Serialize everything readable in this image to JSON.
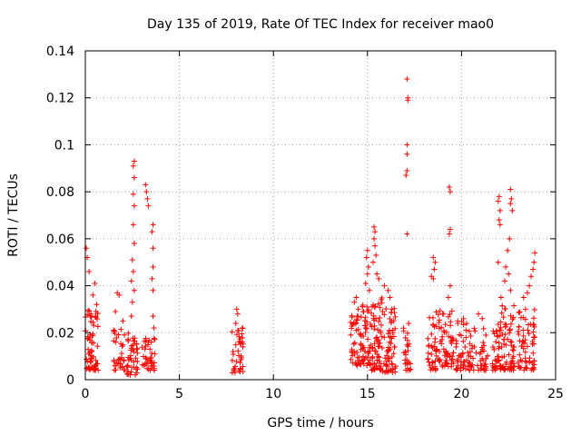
{
  "chart_data": {
    "type": "scatter",
    "title": "Day 135 of 2019, Rate Of TEC Index for receiver mao0",
    "xlabel": "GPS time / hours",
    "ylabel": "ROTI / TECUs",
    "xlim": [
      0,
      25
    ],
    "ylim": [
      0,
      0.14
    ],
    "xticks": [
      "0",
      "5",
      "10",
      "15",
      "20",
      "25"
    ],
    "yticks": [
      "0",
      "0.02",
      "0.04",
      "0.06",
      "0.08",
      "0.1",
      "0.12",
      "0.14"
    ],
    "grid": true,
    "marker": "plus",
    "color": "#ff0000",
    "clusters": [
      {
        "x": [
          0.0,
          0.7
        ],
        "low": 0.004,
        "high": 0.03,
        "n": 70,
        "peaks": [
          [
            0.05,
            0.056
          ],
          [
            0.1,
            0.052
          ],
          [
            0.2,
            0.046
          ],
          [
            0.5,
            0.041
          ],
          [
            0.4,
            0.036
          ],
          [
            0.6,
            0.032
          ],
          [
            0.3,
            0.028
          ]
        ]
      },
      {
        "x": [
          1.5,
          2.1
        ],
        "low": 0.004,
        "high": 0.022,
        "n": 35,
        "peaks": [
          [
            1.7,
            0.037
          ],
          [
            1.8,
            0.036
          ],
          [
            1.6,
            0.029
          ],
          [
            2.0,
            0.025
          ]
        ]
      },
      {
        "x": [
          2.2,
          2.8
        ],
        "low": 0.002,
        "high": 0.02,
        "n": 45,
        "peaks": [
          [
            2.6,
            0.093
          ],
          [
            2.55,
            0.091
          ],
          [
            2.6,
            0.086
          ],
          [
            2.55,
            0.079
          ],
          [
            2.6,
            0.074
          ],
          [
            2.55,
            0.066
          ],
          [
            2.6,
            0.058
          ],
          [
            2.5,
            0.051
          ],
          [
            2.55,
            0.046
          ],
          [
            2.45,
            0.042
          ],
          [
            2.6,
            0.038
          ],
          [
            2.5,
            0.033
          ],
          [
            2.45,
            0.027
          ]
        ]
      },
      {
        "x": [
          3.0,
          3.7
        ],
        "low": 0.004,
        "high": 0.018,
        "n": 40,
        "peaks": [
          [
            3.2,
            0.083
          ],
          [
            3.25,
            0.08
          ],
          [
            3.3,
            0.077
          ],
          [
            3.35,
            0.074
          ],
          [
            3.6,
            0.066
          ],
          [
            3.55,
            0.063
          ],
          [
            3.6,
            0.056
          ],
          [
            3.6,
            0.048
          ],
          [
            3.55,
            0.043
          ],
          [
            3.6,
            0.038
          ],
          [
            3.6,
            0.027
          ],
          [
            3.65,
            0.022
          ]
        ]
      },
      {
        "x": [
          7.8,
          8.4
        ],
        "low": 0.003,
        "high": 0.022,
        "n": 40,
        "peaks": [
          [
            8.05,
            0.03
          ],
          [
            8.1,
            0.028
          ],
          [
            8.0,
            0.024
          ]
        ]
      },
      {
        "x": [
          14.1,
          14.6
        ],
        "low": 0.006,
        "high": 0.03,
        "n": 35,
        "peaks": [
          [
            14.4,
            0.035
          ],
          [
            14.3,
            0.033
          ],
          [
            14.45,
            0.027
          ],
          [
            14.4,
            0.021
          ]
        ]
      },
      {
        "x": [
          14.6,
          15.2
        ],
        "low": 0.006,
        "high": 0.035,
        "n": 50,
        "peaks": [
          [
            15.0,
            0.055
          ],
          [
            14.95,
            0.052
          ],
          [
            15.05,
            0.048
          ],
          [
            15.0,
            0.045
          ],
          [
            14.9,
            0.041
          ],
          [
            15.1,
            0.038
          ],
          [
            14.9,
            0.022
          ]
        ]
      },
      {
        "x": [
          15.2,
          15.8
        ],
        "low": 0.004,
        "high": 0.035,
        "n": 65,
        "peaks": [
          [
            15.35,
            0.065
          ],
          [
            15.4,
            0.063
          ],
          [
            15.35,
            0.06
          ],
          [
            15.4,
            0.057
          ],
          [
            15.45,
            0.053
          ],
          [
            15.3,
            0.05
          ],
          [
            15.5,
            0.045
          ],
          [
            15.6,
            0.043
          ]
        ]
      },
      {
        "x": [
          15.8,
          16.5
        ],
        "low": 0.003,
        "high": 0.032,
        "n": 60,
        "peaks": [
          [
            15.9,
            0.04
          ],
          [
            16.1,
            0.038
          ],
          [
            16.2,
            0.035
          ],
          [
            16.3,
            0.03
          ]
        ]
      },
      {
        "x": [
          16.9,
          17.3
        ],
        "low": 0.004,
        "high": 0.025,
        "n": 25,
        "peaks": [
          [
            17.1,
            0.128
          ],
          [
            17.15,
            0.12
          ],
          [
            17.15,
            0.119
          ],
          [
            17.1,
            0.1
          ],
          [
            17.1,
            0.096
          ],
          [
            17.1,
            0.089
          ],
          [
            17.05,
            0.087
          ],
          [
            17.1,
            0.062
          ]
        ]
      },
      {
        "x": [
          18.2,
          18.8
        ],
        "low": 0.004,
        "high": 0.03,
        "n": 40,
        "peaks": [
          [
            18.5,
            0.052
          ],
          [
            18.6,
            0.05
          ],
          [
            18.55,
            0.047
          ],
          [
            18.4,
            0.044
          ],
          [
            18.5,
            0.043
          ]
        ]
      },
      {
        "x": [
          18.8,
          19.6
        ],
        "low": 0.005,
        "high": 0.03,
        "n": 55,
        "peaks": [
          [
            19.35,
            0.082
          ],
          [
            19.4,
            0.08
          ],
          [
            19.4,
            0.064
          ],
          [
            19.35,
            0.062
          ],
          [
            19.4,
            0.04
          ],
          [
            19.3,
            0.035
          ],
          [
            19.0,
            0.028
          ]
        ]
      },
      {
        "x": [
          19.7,
          20.4
        ],
        "low": 0.004,
        "high": 0.025,
        "n": 40,
        "peaks": [
          [
            20.1,
            0.026
          ],
          [
            19.8,
            0.024
          ]
        ]
      },
      {
        "x": [
          20.4,
          21.4
        ],
        "low": 0.004,
        "high": 0.022,
        "n": 50,
        "peaks": [
          [
            20.9,
            0.028
          ],
          [
            21.1,
            0.026
          ]
        ]
      },
      {
        "x": [
          21.6,
          22.1
        ],
        "low": 0.004,
        "high": 0.025,
        "n": 40,
        "peaks": [
          [
            22.0,
            0.078
          ],
          [
            21.95,
            0.076
          ],
          [
            22.05,
            0.072
          ],
          [
            22.0,
            0.068
          ],
          [
            22.05,
            0.066
          ],
          [
            21.95,
            0.05
          ],
          [
            22.1,
            0.035
          ]
        ]
      },
      {
        "x": [
          22.1,
          22.8
        ],
        "low": 0.004,
        "high": 0.035,
        "n": 65,
        "peaks": [
          [
            22.6,
            0.081
          ],
          [
            22.65,
            0.077
          ],
          [
            22.6,
            0.075
          ],
          [
            22.7,
            0.072
          ],
          [
            22.55,
            0.06
          ],
          [
            22.45,
            0.055
          ],
          [
            22.35,
            0.048
          ],
          [
            22.5,
            0.045
          ],
          [
            22.3,
            0.042
          ],
          [
            22.6,
            0.038
          ]
        ]
      },
      {
        "x": [
          23.0,
          23.9
        ],
        "low": 0.004,
        "high": 0.03,
        "n": 65,
        "peaks": [
          [
            23.9,
            0.054
          ],
          [
            23.85,
            0.05
          ],
          [
            23.8,
            0.047
          ],
          [
            23.7,
            0.044
          ],
          [
            23.6,
            0.04
          ],
          [
            23.5,
            0.037
          ],
          [
            23.3,
            0.035
          ],
          [
            23.4,
            0.03
          ]
        ]
      }
    ]
  }
}
